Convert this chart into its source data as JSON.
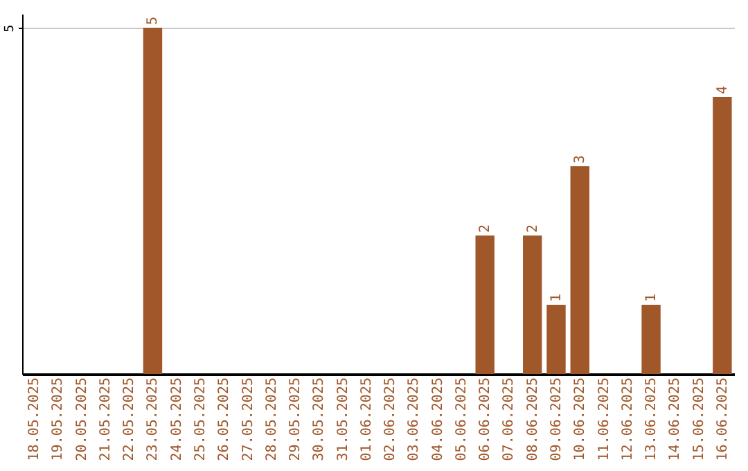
{
  "chart_data": {
    "type": "bar",
    "categories": [
      "18.05.2025",
      "19.05.2025",
      "20.05.2025",
      "21.05.2025",
      "22.05.2025",
      "23.05.2025",
      "24.05.2025",
      "25.05.2025",
      "26.05.2025",
      "27.05.2025",
      "28.05.2025",
      "29.05.2025",
      "30.05.2025",
      "31.05.2025",
      "01.06.2025",
      "02.06.2025",
      "03.06.2025",
      "04.06.2025",
      "05.06.2025",
      "06.06.2025",
      "07.06.2025",
      "08.06.2025",
      "09.06.2025",
      "10.06.2025",
      "11.06.2025",
      "12.06.2025",
      "13.06.2025",
      "14.06.2025",
      "15.06.2025",
      "16.06.2025"
    ],
    "values": [
      null,
      null,
      null,
      null,
      null,
      5,
      null,
      null,
      null,
      null,
      null,
      null,
      null,
      null,
      null,
      null,
      null,
      null,
      null,
      2,
      null,
      2,
      1,
      3,
      null,
      null,
      1,
      null,
      null,
      4
    ],
    "color": "#a0572a",
    "ylim": [
      0,
      5.2
    ],
    "yticks": [
      5
    ],
    "grid": "y",
    "data_labels": true
  }
}
